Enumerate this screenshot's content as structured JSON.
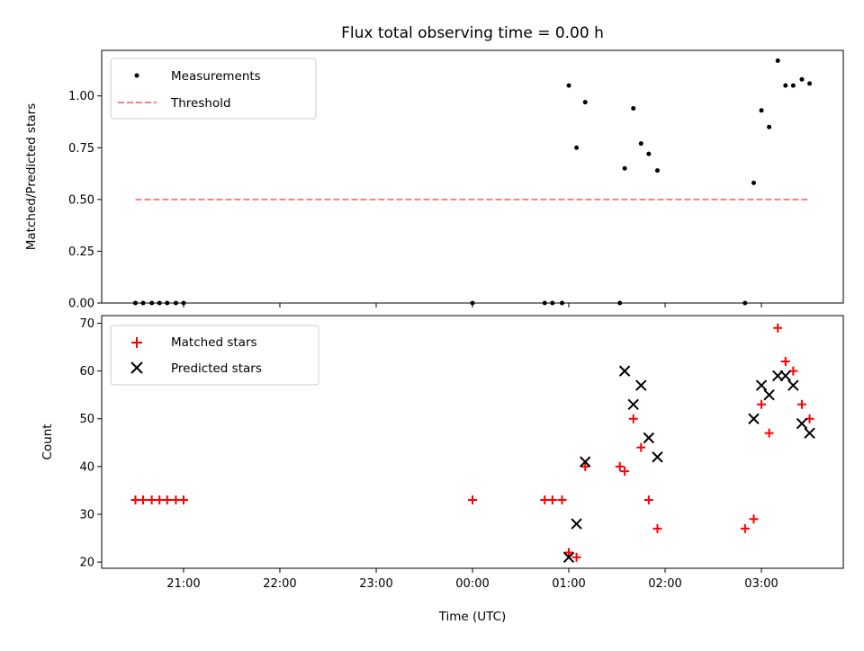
{
  "chart_data": [
    {
      "type": "scatter",
      "title": "Flux total observing time = 0.00 h",
      "ylabel": "Matched/Predicted stars",
      "xlabel": "",
      "xlim": [
        -3.85,
        3.85
      ],
      "ylim": [
        0,
        1.22
      ],
      "y_ticks": [
        0.0,
        0.25,
        0.5,
        0.75,
        1.0
      ],
      "y_tick_labels": [
        "0.00",
        "0.25",
        "0.50",
        "0.75",
        "1.00"
      ],
      "x_ticks": [
        -3,
        -2,
        -1,
        0,
        1,
        2,
        3
      ],
      "x_tick_labels": [
        "",
        "",
        "",
        "",
        "",
        "",
        ""
      ],
      "grid": false,
      "legend": "top-left",
      "series": [
        {
          "name": "Measurements",
          "color": "#000000",
          "marker": "dot",
          "points": [
            [
              -3.5,
              0
            ],
            [
              -3.42,
              0
            ],
            [
              -3.33,
              0
            ],
            [
              -3.25,
              0
            ],
            [
              -3.17,
              0
            ],
            [
              -3.08,
              0
            ],
            [
              -3.0,
              0
            ],
            [
              0.0,
              0
            ],
            [
              0.75,
              0
            ],
            [
              0.83,
              0
            ],
            [
              0.93,
              0
            ],
            [
              1.0,
              1.05
            ],
            [
              1.08,
              0.75
            ],
            [
              1.17,
              0.97
            ],
            [
              1.53,
              0
            ],
            [
              1.58,
              0.65
            ],
            [
              1.67,
              0.94
            ],
            [
              1.75,
              0.77
            ],
            [
              1.83,
              0.72
            ],
            [
              1.92,
              0.64
            ],
            [
              2.83,
              0
            ],
            [
              2.92,
              0.58
            ],
            [
              3.0,
              0.93
            ],
            [
              3.08,
              0.85
            ],
            [
              3.17,
              1.17
            ],
            [
              3.25,
              1.05
            ],
            [
              3.33,
              1.05
            ],
            [
              3.42,
              1.08
            ],
            [
              3.5,
              1.06
            ]
          ]
        },
        {
          "name": "Threshold",
          "color": "#ff7f7f",
          "style": "dashed",
          "points": [
            [
              -3.5,
              0.5
            ],
            [
              3.5,
              0.5
            ]
          ]
        }
      ]
    },
    {
      "type": "scatter",
      "title": "",
      "ylabel": "Count",
      "xlabel": "Time (UTC)",
      "xlim": [
        -3.85,
        3.85
      ],
      "ylim": [
        18.7,
        71.6
      ],
      "y_ticks": [
        20,
        30,
        40,
        50,
        60,
        70
      ],
      "y_tick_labels": [
        "20",
        "30",
        "40",
        "50",
        "60",
        "70"
      ],
      "x_ticks": [
        -3,
        -2,
        -1,
        0,
        1,
        2,
        3
      ],
      "x_tick_labels": [
        "21:00",
        "22:00",
        "23:00",
        "00:00",
        "01:00",
        "02:00",
        "03:00"
      ],
      "grid": false,
      "legend": "top-left",
      "series": [
        {
          "name": "Matched stars",
          "color": "#ff0000",
          "marker": "plus",
          "points": [
            [
              -3.5,
              33
            ],
            [
              -3.42,
              33
            ],
            [
              -3.33,
              33
            ],
            [
              -3.25,
              33
            ],
            [
              -3.17,
              33
            ],
            [
              -3.08,
              33
            ],
            [
              -3.0,
              33
            ],
            [
              0.0,
              33
            ],
            [
              0.75,
              33
            ],
            [
              0.83,
              33
            ],
            [
              0.93,
              33
            ],
            [
              1.0,
              22
            ],
            [
              1.08,
              21
            ],
            [
              1.17,
              40
            ],
            [
              1.53,
              40
            ],
            [
              1.58,
              39
            ],
            [
              1.67,
              50
            ],
            [
              1.75,
              44
            ],
            [
              1.83,
              33
            ],
            [
              1.92,
              27
            ],
            [
              2.83,
              27
            ],
            [
              2.92,
              29
            ],
            [
              3.0,
              53
            ],
            [
              3.08,
              47
            ],
            [
              3.17,
              69
            ],
            [
              3.25,
              62
            ],
            [
              3.33,
              60
            ],
            [
              3.42,
              53
            ],
            [
              3.5,
              50
            ]
          ]
        },
        {
          "name": "Predicted stars",
          "color": "#000000",
          "marker": "x",
          "points": [
            [
              1.0,
              21
            ],
            [
              1.08,
              28
            ],
            [
              1.17,
              41
            ],
            [
              1.58,
              60
            ],
            [
              1.67,
              53
            ],
            [
              1.75,
              57
            ],
            [
              1.83,
              46
            ],
            [
              1.92,
              42
            ],
            [
              2.92,
              50
            ],
            [
              3.0,
              57
            ],
            [
              3.08,
              55
            ],
            [
              3.17,
              59
            ],
            [
              3.25,
              59
            ],
            [
              3.33,
              57
            ],
            [
              3.42,
              49
            ],
            [
              3.5,
              47
            ]
          ]
        }
      ]
    }
  ]
}
